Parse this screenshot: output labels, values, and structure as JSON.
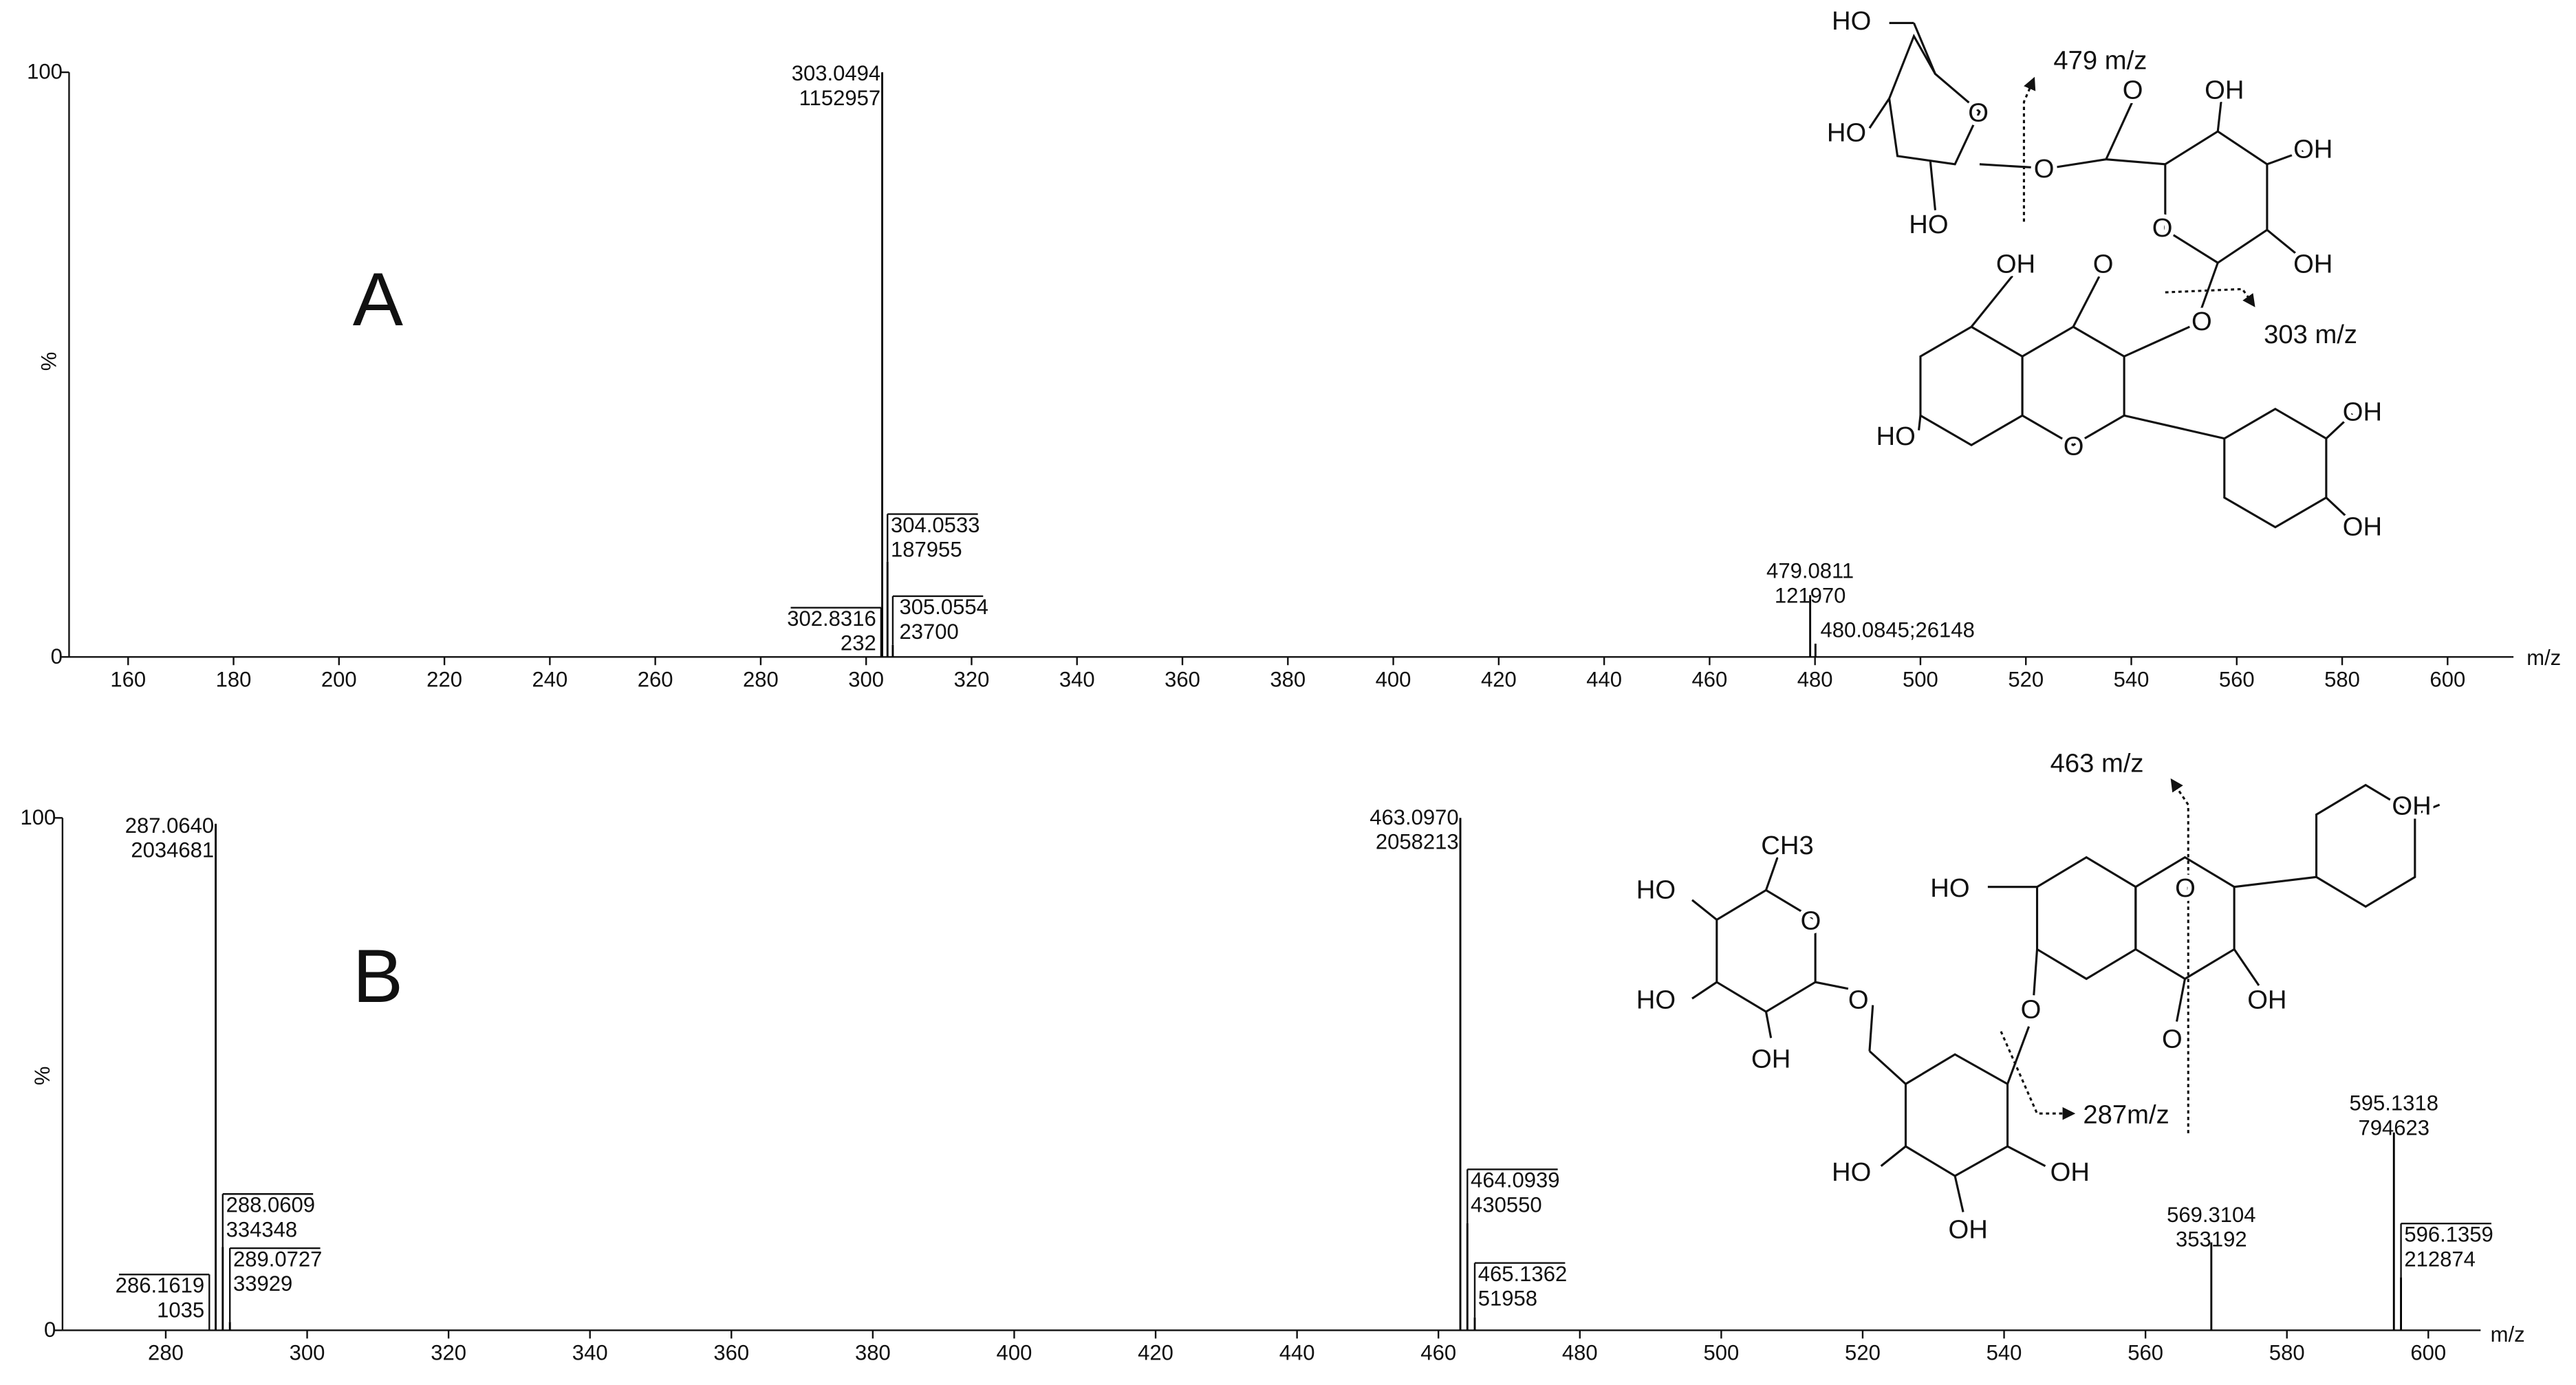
{
  "chart_data": [
    {
      "type": "bar",
      "annotation": "A",
      "xlabel": "m/z",
      "ylabel": "%",
      "x": [
        302.8316,
        303.0494,
        304.0533,
        305.0554,
        479.0811,
        480.0845
      ],
      "values": [
        0.02,
        100,
        16.3,
        2.06,
        10.58,
        2.27
      ],
      "peak_labels": [
        [
          "302.8316",
          "232"
        ],
        [
          "303.0494",
          "1152957"
        ],
        [
          "304.0533",
          "187955"
        ],
        [
          "305.0554",
          "23700"
        ],
        [
          "479.0811",
          "121970"
        ],
        [
          "480.0845;26148"
        ]
      ],
      "color": "#000000",
      "xlim": [
        148.8,
        612.5
      ],
      "xticks": [
        160,
        180,
        200,
        220,
        240,
        260,
        280,
        300,
        320,
        340,
        360,
        380,
        400,
        420,
        440,
        460,
        480,
        500,
        520,
        540,
        560,
        580,
        600
      ],
      "ylim": [
        0,
        100
      ],
      "yticks": [
        0,
        100
      ],
      "structure_labels": [
        "HO",
        "479 m/z",
        "HO",
        "O",
        "O",
        "O",
        "OH",
        "OH",
        "HO",
        "O",
        "OH",
        "OH",
        "O",
        "O",
        "303 m/z",
        "HO",
        "O",
        "OH",
        "OH"
      ]
    },
    {
      "type": "bar",
      "annotation": "B",
      "xlabel": "m/z",
      "ylabel": "%",
      "x": [
        286.1619,
        287.064,
        288.0609,
        289.0727,
        463.097,
        464.0939,
        465.1362,
        569.3104,
        595.1318,
        596.1359
      ],
      "values": [
        0.05,
        98.86,
        16.24,
        1.65,
        100,
        20.92,
        2.52,
        17.16,
        38.61,
        10.34
      ],
      "peak_labels": [
        [
          "286.1619",
          "1035"
        ],
        [
          "287.0640",
          "2034681"
        ],
        [
          "288.0609",
          "334348"
        ],
        [
          "289.0727",
          "33929"
        ],
        [
          "463.0970",
          "2058213"
        ],
        [
          "464.0939",
          "430550"
        ],
        [
          "465.1362",
          "51958"
        ],
        [
          "569.3104",
          "353192"
        ],
        [
          "595.1318",
          "794623"
        ],
        [
          "596.1359",
          "212874"
        ]
      ],
      "color": "#000000",
      "xlim": [
        265.4,
        607.4
      ],
      "xticks": [
        280,
        300,
        320,
        340,
        360,
        380,
        400,
        420,
        440,
        460,
        480,
        500,
        520,
        540,
        560,
        580,
        600
      ],
      "ylim": [
        0,
        100
      ],
      "yticks": [
        0,
        100
      ],
      "structure_labels": [
        "463 m/z",
        "OH",
        "CH3",
        "HO",
        "HO",
        "O",
        "O",
        "HO",
        "O",
        "OH",
        "OH",
        "O",
        "O",
        "287m/z",
        "HO",
        "OH",
        "OH"
      ]
    }
  ]
}
